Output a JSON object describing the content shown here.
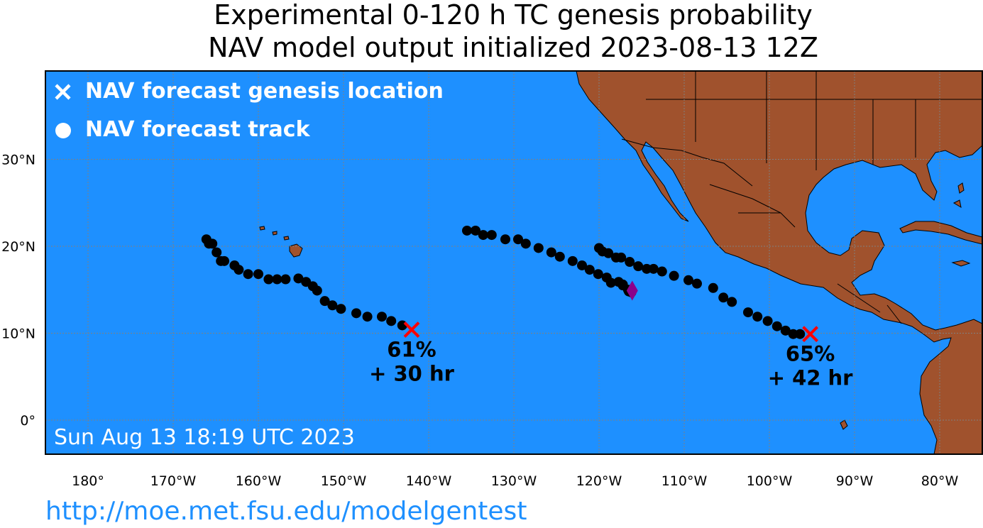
{
  "title_line1": "Experimental 0-120 h TC genesis probability",
  "title_line2": "NAV model output initialized 2023-08-13 12Z",
  "legend": {
    "genesis_label": "NAV forecast genesis location",
    "track_label": "NAV forecast track"
  },
  "timestamp": "Sun Aug 13 18:19 UTC 2023",
  "url": "http://moe.met.fsu.edu/modelgentest",
  "colors": {
    "ocean": "#1e90ff",
    "land": "#a0522d",
    "genesis_marker": "#ff0000",
    "track": "#000000",
    "current_position": "#8b008b"
  },
  "axes": {
    "lon_ticks": [
      {
        "lon": -180,
        "label": "180°"
      },
      {
        "lon": -170,
        "label": "170°W"
      },
      {
        "lon": -160,
        "label": "160°W"
      },
      {
        "lon": -150,
        "label": "150°W"
      },
      {
        "lon": -140,
        "label": "140°W"
      },
      {
        "lon": -130,
        "label": "130°W"
      },
      {
        "lon": -120,
        "label": "120°W"
      },
      {
        "lon": -110,
        "label": "110°W"
      },
      {
        "lon": -100,
        "label": "100°W"
      },
      {
        "lon": -90,
        "label": "90°W"
      },
      {
        "lon": -80,
        "label": "80°W"
      }
    ],
    "lat_ticks": [
      {
        "lat": 0,
        "label": "0°"
      },
      {
        "lat": 10,
        "label": "10°N"
      },
      {
        "lat": 20,
        "label": "20°N"
      },
      {
        "lat": 30,
        "label": "30°N"
      }
    ],
    "lon_range": [
      -185,
      -75
    ],
    "lat_range": [
      -3.8,
      38.5
    ]
  },
  "storms": [
    {
      "genesis": {
        "lon": -142,
        "lat": 10.4
      },
      "probability": "61%",
      "lead_time": "+ 30 hr",
      "track": [
        [
          -143.1,
          10.9
        ],
        [
          -144.4,
          11.4
        ],
        [
          -145.5,
          11.9
        ],
        [
          -147.2,
          11.9
        ],
        [
          -148.5,
          12.3
        ],
        [
          -150.3,
          12.8
        ],
        [
          -151.3,
          13.2
        ],
        [
          -152.2,
          13.7
        ],
        [
          -153.1,
          14.9
        ],
        [
          -153.6,
          15.4
        ],
        [
          -154.4,
          15.9
        ],
        [
          -155.3,
          16.3
        ],
        [
          -156.8,
          16.2
        ],
        [
          -157.8,
          16.2
        ],
        [
          -158.8,
          16.2
        ],
        [
          -160.0,
          16.8
        ],
        [
          -161.2,
          16.8
        ],
        [
          -162.3,
          17.3
        ],
        [
          -162.8,
          17.8
        ],
        [
          -164.0,
          18.3
        ],
        [
          -164.4,
          18.3
        ],
        [
          -164.9,
          19.3
        ],
        [
          -165.4,
          20.3
        ],
        [
          -166.1,
          20.8
        ],
        [
          -165.8,
          20.3
        ]
      ]
    },
    {
      "genesis": {
        "lon": -95.2,
        "lat": 9.9
      },
      "probability": "65%",
      "lead_time": "+ 42 hr",
      "track": [
        [
          -96.4,
          9.9
        ],
        [
          -97.2,
          9.9
        ],
        [
          -98.1,
          10.3
        ],
        [
          -99.1,
          10.8
        ],
        [
          -100.2,
          11.4
        ],
        [
          -101.4,
          11.9
        ],
        [
          -102.5,
          12.4
        ],
        [
          -104.4,
          13.6
        ],
        [
          -105.4,
          14.1
        ],
        [
          -106.6,
          15.2
        ],
        [
          -108.5,
          15.7
        ],
        [
          -109.5,
          16.1
        ],
        [
          -111.2,
          16.6
        ],
        [
          -112.6,
          17.1
        ],
        [
          -113.6,
          17.4
        ],
        [
          -114.4,
          17.4
        ],
        [
          -115.4,
          17.7
        ],
        [
          -116.4,
          18.2
        ],
        [
          -117.4,
          18.7
        ],
        [
          -118.0,
          18.7
        ],
        [
          -118.9,
          19.2
        ],
        [
          -119.6,
          19.4
        ],
        [
          -120.0,
          19.8
        ],
        [
          -117.2,
          15.6
        ],
        [
          -116.6,
          15.0
        ],
        [
          -116.2,
          14.7
        ]
      ]
    },
    {
      "track": [
        [
          -135.5,
          21.8
        ],
        [
          -134.5,
          21.8
        ],
        [
          -133.6,
          21.3
        ],
        [
          -132.6,
          21.3
        ],
        [
          -131.0,
          20.8
        ],
        [
          -129.5,
          20.8
        ],
        [
          -128.6,
          20.3
        ],
        [
          -127.1,
          19.8
        ],
        [
          -125.6,
          19.3
        ],
        [
          -124.6,
          18.8
        ],
        [
          -123.1,
          18.3
        ],
        [
          -122.0,
          17.8
        ],
        [
          -121.1,
          17.3
        ],
        [
          -120.1,
          16.8
        ],
        [
          -119.1,
          16.4
        ],
        [
          -118.6,
          15.8
        ],
        [
          -117.7,
          15.9
        ],
        [
          -117.2,
          15.5
        ],
        [
          -116.5,
          14.8
        ]
      ]
    }
  ],
  "current_position": {
    "lon": -116.1,
    "lat": 14.9
  }
}
